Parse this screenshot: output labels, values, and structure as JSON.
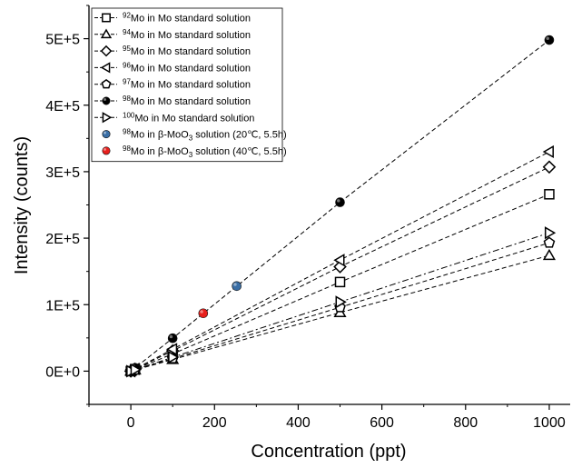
{
  "chart_data": {
    "type": "scatter",
    "xlabel": "Concentration (ppt)",
    "ylabel": "Intensity (counts)",
    "xlim": [
      -100,
      1050
    ],
    "ylim": [
      -50000,
      550000
    ],
    "x_ticks": [
      0,
      200,
      400,
      600,
      800,
      1000
    ],
    "x_tick_labels": [
      "0",
      "200",
      "400",
      "600",
      "800",
      "1000"
    ],
    "y_ticks": [
      0,
      100000,
      200000,
      300000,
      400000,
      500000
    ],
    "y_tick_labels": [
      "0E+0",
      "1E+5",
      "2E+5",
      "3E+5",
      "4E+5",
      "5E+5"
    ],
    "legend_position": "top-left",
    "grid": false,
    "series": [
      {
        "name": "92Mo in Mo standard solution",
        "legend": {
          "sup": "92",
          "main": "Mo in Mo standard solution"
        },
        "marker": "square",
        "color": "#000000",
        "line": "dashed",
        "x": [
          0,
          10,
          100,
          500,
          1000
        ],
        "y": [
          0,
          2700,
          26000,
          134000,
          266000
        ]
      },
      {
        "name": "94Mo in Mo standard solution",
        "legend": {
          "sup": "94",
          "main": "Mo in Mo standard solution"
        },
        "marker": "triangle-up",
        "color": "#000000",
        "line": "dashed",
        "x": [
          0,
          10,
          100,
          500,
          1000
        ],
        "y": [
          0,
          1800,
          17500,
          88000,
          174000
        ]
      },
      {
        "name": "95Mo in Mo standard solution",
        "legend": {
          "sup": "95",
          "main": "Mo in Mo standard solution"
        },
        "marker": "diamond",
        "color": "#000000",
        "line": "dashed",
        "x": [
          0,
          10,
          100,
          500,
          1000
        ],
        "y": [
          0,
          3100,
          30500,
          157000,
          307000
        ]
      },
      {
        "name": "96Mo in Mo standard solution",
        "legend": {
          "sup": "96",
          "main": "Mo in Mo standard solution"
        },
        "marker": "triangle-left",
        "color": "#000000",
        "line": "dashed",
        "x": [
          0,
          10,
          100,
          500,
          1000
        ],
        "y": [
          0,
          3300,
          33000,
          167000,
          330000
        ]
      },
      {
        "name": "97Mo in Mo standard solution",
        "legend": {
          "sup": "97",
          "main": "Mo in Mo standard solution"
        },
        "marker": "pentagon",
        "color": "#000000",
        "line": "dashed",
        "x": [
          0,
          10,
          100,
          500,
          1000
        ],
        "y": [
          0,
          1900,
          19000,
          96000,
          193000
        ]
      },
      {
        "name": "98Mo in Mo standard solution",
        "legend": {
          "sup": "98",
          "main": "Mo in Mo standard solution"
        },
        "marker": "circle-filled",
        "color": "#000000",
        "line": "dashed",
        "x": [
          0,
          10,
          100,
          500,
          1000
        ],
        "y": [
          0,
          5000,
          49500,
          254000,
          498000
        ]
      },
      {
        "name": "100Mo in Mo standard solution",
        "legend": {
          "sup": "100",
          "main": "Mo in Mo standard solution"
        },
        "marker": "triangle-right",
        "color": "#000000",
        "line": "dashdot",
        "x": [
          0,
          10,
          100,
          500,
          1000
        ],
        "y": [
          0,
          2100,
          21000,
          104000,
          208000
        ]
      },
      {
        "name": "98Mo in β-MoO3 solution (20℃, 5.5h)",
        "legend": {
          "sup": "98",
          "main": "Mo in β-MoO",
          "sub": "3",
          "rest": " solution (20℃, 5.5h)"
        },
        "marker": "circle-filled",
        "color": "#3a6ea5",
        "line": "none",
        "x": [
          253
        ],
        "y": [
          128000
        ]
      },
      {
        "name": "98Mo in β-MoO3 solution (40℃, 5.5h)",
        "legend": {
          "sup": "98",
          "main": "Mo in β-MoO",
          "sub": "3",
          "rest": " solution (40℃, 5.5h)"
        },
        "marker": "circle-filled",
        "color": "#e8201d",
        "line": "none",
        "x": [
          173
        ],
        "y": [
          87000
        ]
      }
    ]
  }
}
